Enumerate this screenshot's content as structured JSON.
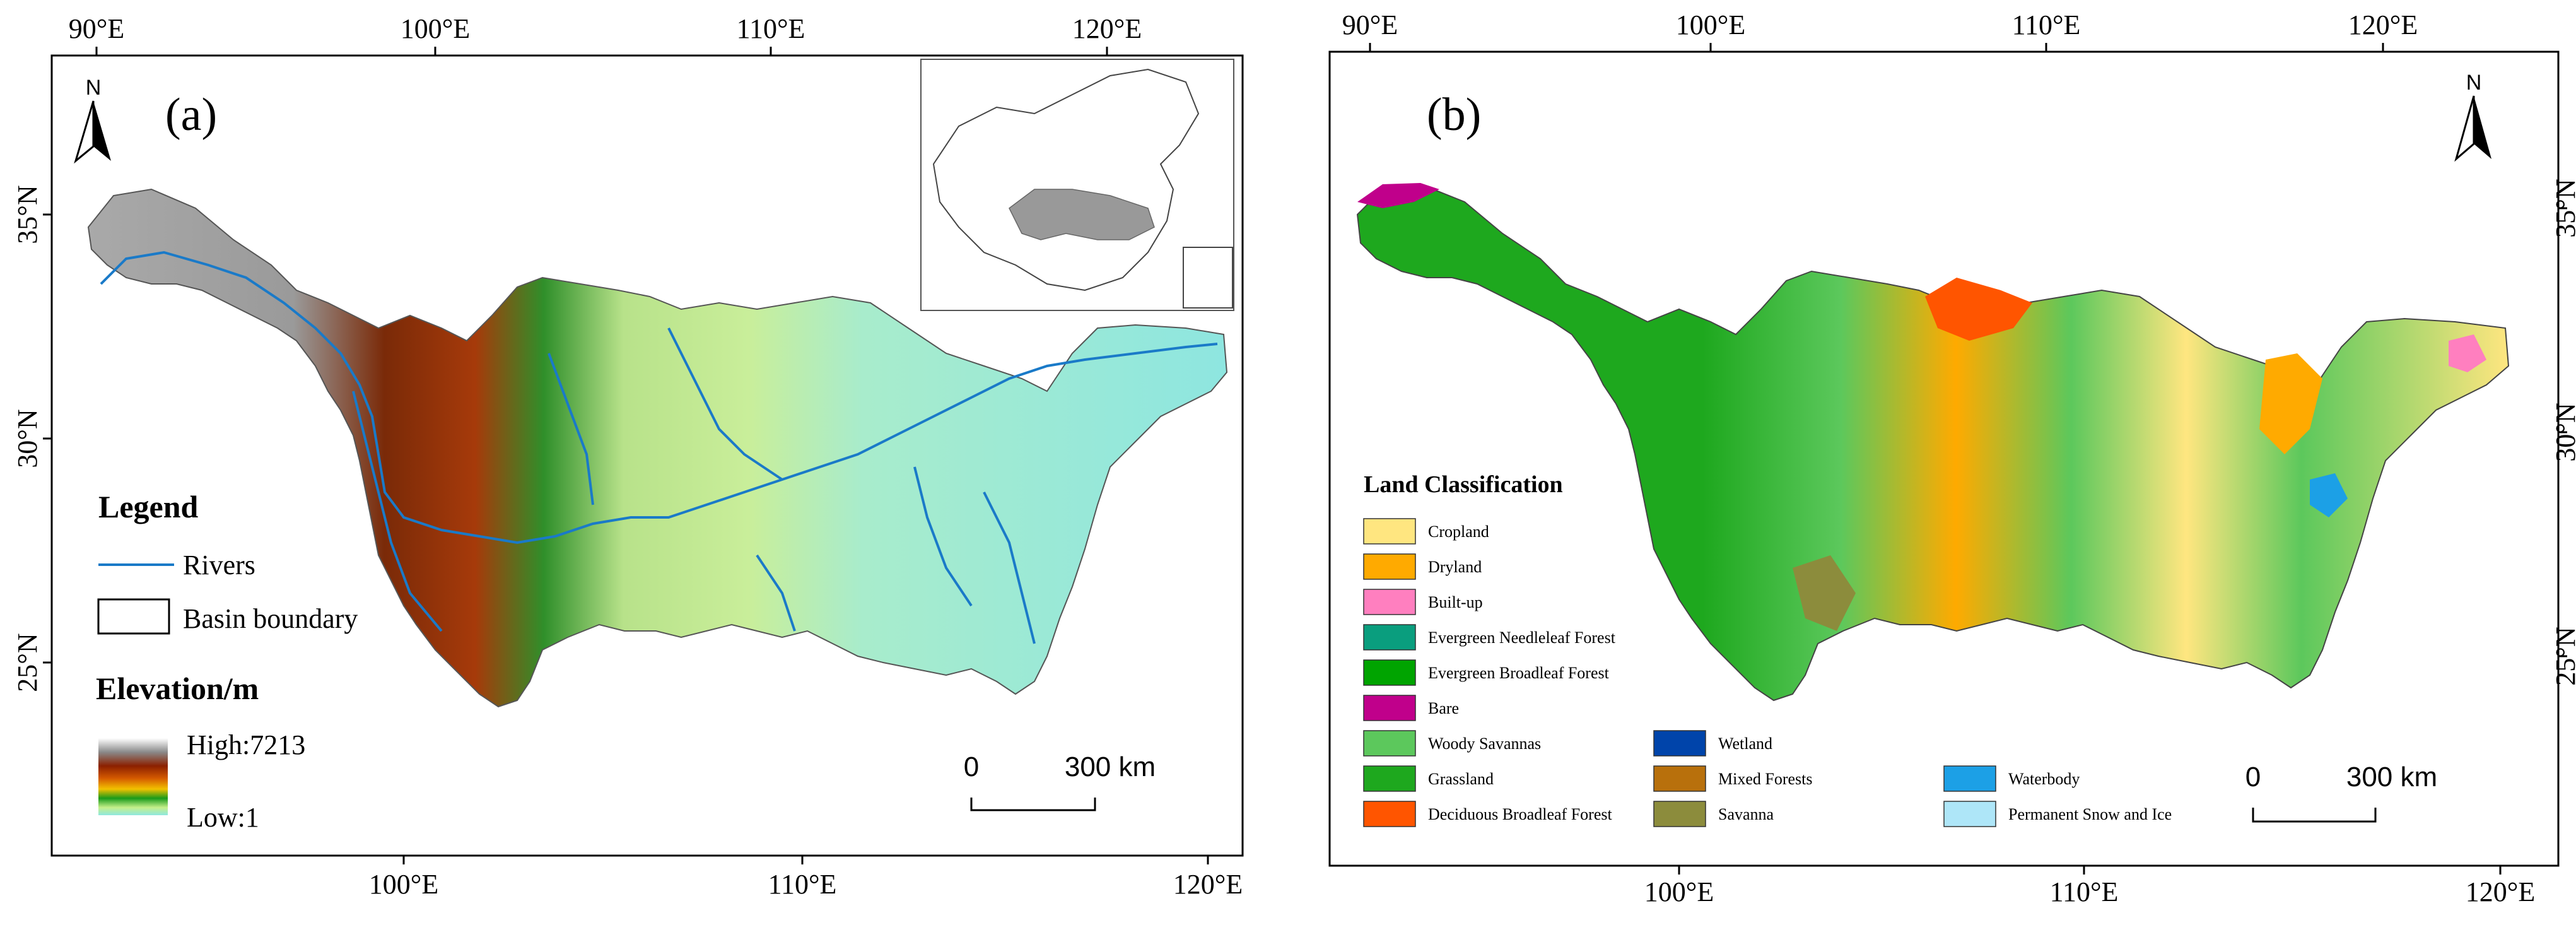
{
  "panel_a": {
    "label": "(a)",
    "top_ticks": [
      "90°E",
      "100°E",
      "110°E",
      "120°E"
    ],
    "bottom_ticks": [
      "100°E",
      "110°E",
      "120°E"
    ],
    "lat_ticks": [
      "35°N",
      "30°N",
      "25°N"
    ],
    "north": "N",
    "legend": {
      "title": "Legend",
      "rivers": "Rivers",
      "boundary": "Basin boundary",
      "elev_title": "Elevation/m",
      "high": "High:7213",
      "low": "Low:1"
    },
    "scale": {
      "zero": "0",
      "dist": "300 km"
    }
  },
  "panel_b": {
    "label": "(b)",
    "top_ticks": [
      "90°E",
      "100°E",
      "110°E",
      "120°E"
    ],
    "bottom_ticks": [
      "100°E",
      "110°E",
      "120°E"
    ],
    "lat_ticks": [
      "35°N",
      "30°N",
      "25°N"
    ],
    "north": "N",
    "legend_title": "Land Classification",
    "classes": [
      {
        "name": "Cropland",
        "color": "#FFE680"
      },
      {
        "name": "Dryland",
        "color": "#FFAA00"
      },
      {
        "name": "Built-up",
        "color": "#FF7FBF"
      },
      {
        "name": "Evergreen Needleleaf Forest",
        "color": "#0A9E7E"
      },
      {
        "name": "Evergreen Broadleaf Forest",
        "color": "#00A400"
      },
      {
        "name": "Bare",
        "color": "#C0008B"
      },
      {
        "name": "Woody Savannas",
        "color": "#5CC85C"
      },
      {
        "name": "Grassland",
        "color": "#1EA81E"
      },
      {
        "name": "Deciduous Broadleaf Forest",
        "color": "#FF5500"
      },
      {
        "name": "Wetland",
        "color": "#0044AA"
      },
      {
        "name": "Mixed Forests",
        "color": "#B8700C"
      },
      {
        "name": "Savanna",
        "color": "#8C8C3C"
      },
      {
        "name": "Waterbody",
        "color": "#1CA0E6"
      },
      {
        "name": "Permanent Snow and Ice",
        "color": "#AEE6F8"
      }
    ],
    "scale": {
      "zero": "0",
      "dist": "300 km"
    }
  }
}
